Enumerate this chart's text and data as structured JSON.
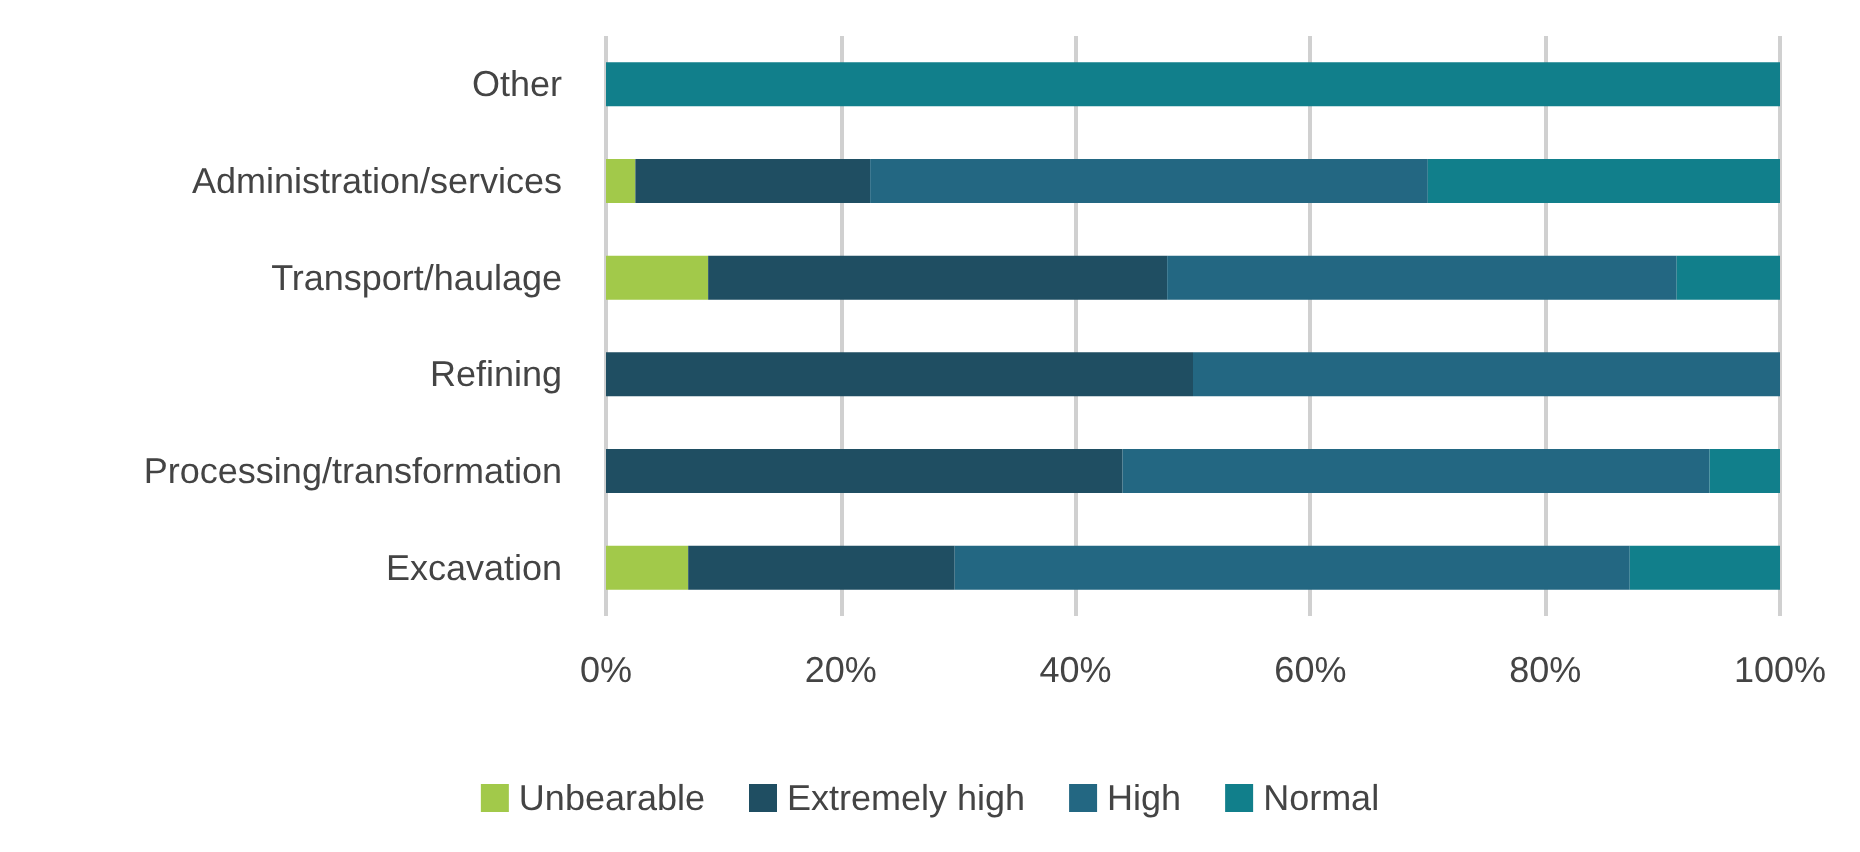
{
  "chart_data": {
    "type": "bar",
    "orientation": "horizontal",
    "stacked": true,
    "categories": [
      "Other",
      "Administration/services",
      "Transport/haulage",
      "Refining",
      "Processing/transformation",
      "Excavation"
    ],
    "series": [
      {
        "name": "Unbearable",
        "color": "#a2c94a",
        "values": [
          0,
          2.5,
          8.7,
          0,
          0,
          7
        ]
      },
      {
        "name": "Extremely high",
        "color": "#1f4e62",
        "values": [
          0,
          20,
          39.1,
          50,
          44,
          22.7
        ]
      },
      {
        "name": "High",
        "color": "#236782",
        "values": [
          0,
          47.5,
          43.4,
          50,
          50,
          57.5
        ]
      },
      {
        "name": "Normal",
        "color": "#117f8b",
        "values": [
          100,
          30,
          8.8,
          0,
          6,
          12.8
        ]
      }
    ],
    "xlim": [
      0,
      100
    ],
    "xticks": [
      {
        "value": 0,
        "label": "0%"
      },
      {
        "value": 20,
        "label": "20%"
      },
      {
        "value": 40,
        "label": "40%"
      },
      {
        "value": 60,
        "label": "60%"
      },
      {
        "value": 80,
        "label": "80%"
      },
      {
        "value": 100,
        "label": "100%"
      }
    ],
    "grid": "x",
    "legend": "bottom"
  }
}
